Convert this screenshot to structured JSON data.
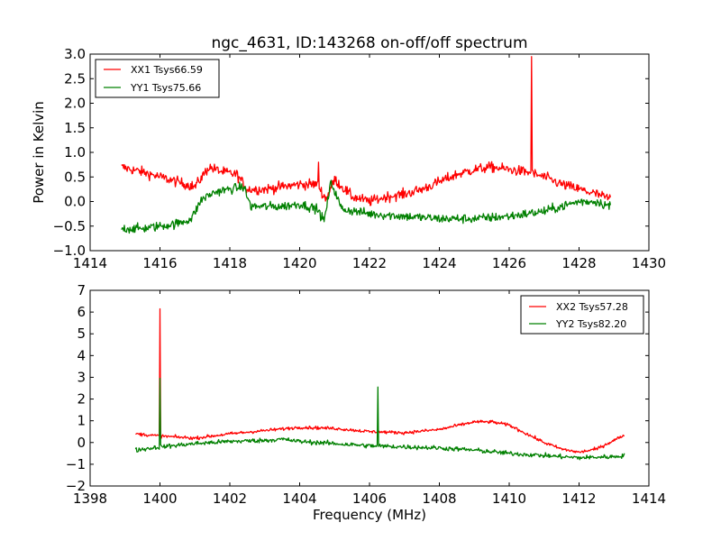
{
  "colors": {
    "xx": "#ff0000",
    "yy": "#008000",
    "axis": "#000000",
    "background": "#ffffff"
  },
  "chart_data": [
    {
      "type": "line",
      "title": "ngc_4631, ID:143268 on-off/off spectrum",
      "xlabel": "",
      "ylabel": "Power in Kelvin",
      "xlim": [
        1414,
        1430
      ],
      "ylim": [
        -1.0,
        3.0
      ],
      "xticks": [
        "1414",
        "1416",
        "1418",
        "1420",
        "1422",
        "1424",
        "1426",
        "1428",
        "1430"
      ],
      "yticks": [
        "−1.0",
        "−0.5",
        "0.0",
        "0.5",
        "1.0",
        "1.5",
        "2.0",
        "2.5",
        "3.0"
      ],
      "grid": false,
      "legend_position": "top-left",
      "x_range": [
        1414.9,
        1428.9
      ],
      "series": [
        {
          "name": "XX1 Tsys66.59",
          "color": "#ff0000",
          "noise": 0.1,
          "x": [
            1414.9,
            1415.5,
            1416.0,
            1416.5,
            1417.0,
            1417.4,
            1417.8,
            1418.2,
            1418.5,
            1419.0,
            1419.5,
            1420.0,
            1420.5,
            1420.75,
            1421.0,
            1421.5,
            1422.0,
            1422.5,
            1423.0,
            1423.5,
            1424.0,
            1424.5,
            1425.0,
            1425.5,
            1426.0,
            1426.5,
            1427.0,
            1427.5,
            1428.0,
            1428.5,
            1428.9
          ],
          "y": [
            0.7,
            0.6,
            0.5,
            0.4,
            0.3,
            0.7,
            0.6,
            0.55,
            0.25,
            0.25,
            0.3,
            0.35,
            0.35,
            0.05,
            0.45,
            0.1,
            0.0,
            0.1,
            0.15,
            0.25,
            0.4,
            0.55,
            0.65,
            0.7,
            0.65,
            0.6,
            0.5,
            0.35,
            0.25,
            0.15,
            0.05
          ],
          "spikes": [
            {
              "x": 1426.65,
              "y": 2.95
            },
            {
              "x": 1420.55,
              "y": 0.8
            }
          ]
        },
        {
          "name": "YY1 Tsys75.66",
          "color": "#008000",
          "noise": 0.09,
          "x": [
            1414.9,
            1415.5,
            1416.0,
            1416.5,
            1416.9,
            1417.2,
            1417.6,
            1418.0,
            1418.4,
            1418.6,
            1419.5,
            1420.0,
            1420.5,
            1420.7,
            1420.9,
            1421.2,
            1422.0,
            1423.0,
            1424.0,
            1425.0,
            1426.0,
            1427.0,
            1427.5,
            1428.0,
            1428.5,
            1428.9
          ],
          "y": [
            -0.55,
            -0.55,
            -0.5,
            -0.45,
            -0.35,
            0.05,
            0.2,
            0.25,
            0.3,
            -0.1,
            -0.1,
            -0.05,
            -0.15,
            -0.4,
            0.4,
            -0.15,
            -0.25,
            -0.3,
            -0.35,
            -0.35,
            -0.3,
            -0.2,
            -0.1,
            0.0,
            0.0,
            -0.1
          ],
          "spikes": []
        }
      ]
    },
    {
      "type": "line",
      "title": "",
      "xlabel": "Frequency (MHz)",
      "ylabel": "",
      "xlim": [
        1398,
        1414
      ],
      "ylim": [
        -2,
        7
      ],
      "xticks": [
        "1398",
        "1400",
        "1402",
        "1404",
        "1406",
        "1408",
        "1410",
        "1412",
        "1414"
      ],
      "yticks": [
        "−2",
        "−1",
        "0",
        "1",
        "2",
        "3",
        "4",
        "5",
        "6",
        "7"
      ],
      "grid": false,
      "legend_position": "top-right",
      "x_range": [
        1399.3,
        1413.3
      ],
      "series": [
        {
          "name": "XX2 Tsys57.28",
          "color": "#ff0000",
          "noise": 0.07,
          "x": [
            1399.3,
            1400.0,
            1401.0,
            1402.0,
            1403.0,
            1404.0,
            1405.0,
            1406.0,
            1407.0,
            1408.0,
            1409.0,
            1409.5,
            1410.0,
            1410.5,
            1411.0,
            1411.5,
            1412.0,
            1412.5,
            1413.0,
            1413.3
          ],
          "y": [
            0.4,
            0.3,
            0.2,
            0.4,
            0.55,
            0.7,
            0.65,
            0.5,
            0.45,
            0.6,
            0.95,
            0.95,
            0.8,
            0.4,
            0.0,
            -0.3,
            -0.45,
            -0.3,
            0.1,
            0.35
          ],
          "spikes": [
            {
              "x": 1400.0,
              "y": 6.15
            }
          ]
        },
        {
          "name": "YY2 Tsys82.20",
          "color": "#008000",
          "noise": 0.1,
          "x": [
            1399.3,
            1400.0,
            1401.0,
            1402.0,
            1403.0,
            1403.5,
            1404.0,
            1405.0,
            1406.0,
            1407.0,
            1408.0,
            1409.0,
            1410.0,
            1411.0,
            1412.0,
            1413.0,
            1413.3
          ],
          "y": [
            -0.35,
            -0.2,
            -0.05,
            0.05,
            0.1,
            0.15,
            0.05,
            -0.05,
            -0.15,
            -0.2,
            -0.25,
            -0.35,
            -0.5,
            -0.6,
            -0.7,
            -0.65,
            -0.6
          ],
          "spikes": [
            {
              "x": 1400.0,
              "y": 2.95
            },
            {
              "x": 1406.25,
              "y": 2.55
            }
          ]
        }
      ]
    }
  ]
}
